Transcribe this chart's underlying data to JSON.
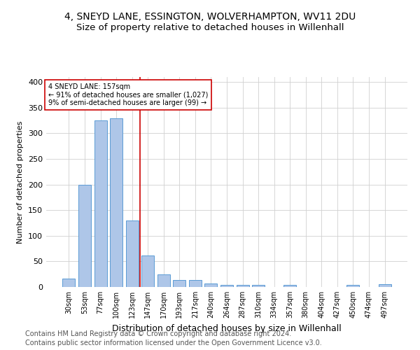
{
  "title1": "4, SNEYD LANE, ESSINGTON, WOLVERHAMPTON, WV11 2DU",
  "title2": "Size of property relative to detached houses in Willenhall",
  "xlabel": "Distribution of detached houses by size in Willenhall",
  "ylabel": "Number of detached properties",
  "categories": [
    "30sqm",
    "53sqm",
    "77sqm",
    "100sqm",
    "123sqm",
    "147sqm",
    "170sqm",
    "193sqm",
    "217sqm",
    "240sqm",
    "264sqm",
    "287sqm",
    "310sqm",
    "334sqm",
    "357sqm",
    "380sqm",
    "404sqm",
    "427sqm",
    "450sqm",
    "474sqm",
    "497sqm"
  ],
  "values": [
    17,
    199,
    325,
    330,
    130,
    62,
    25,
    14,
    14,
    7,
    4,
    4,
    4,
    0,
    4,
    0,
    0,
    0,
    4,
    0,
    5
  ],
  "bar_color": "#aec6e8",
  "bar_edge_color": "#5b9bd5",
  "vline_index": 5,
  "vline_color": "#cc0000",
  "annotation_text": "4 SNEYD LANE: 157sqm\n← 91% of detached houses are smaller (1,027)\n9% of semi-detached houses are larger (99) →",
  "annotation_box_color": "#ffffff",
  "annotation_box_edge": "#cc0000",
  "grid_color": "#d0d0d0",
  "bg_color": "#ffffff",
  "footer1": "Contains HM Land Registry data © Crown copyright and database right 2024.",
  "footer2": "Contains public sector information licensed under the Open Government Licence v3.0.",
  "ylim": [
    0,
    410
  ],
  "yticks": [
    0,
    50,
    100,
    150,
    200,
    250,
    300,
    350,
    400
  ],
  "title1_fontsize": 10,
  "title2_fontsize": 9.5,
  "xlabel_fontsize": 9,
  "ylabel_fontsize": 8,
  "tick_fontsize": 7,
  "annotation_fontsize": 7,
  "footer_fontsize": 7
}
